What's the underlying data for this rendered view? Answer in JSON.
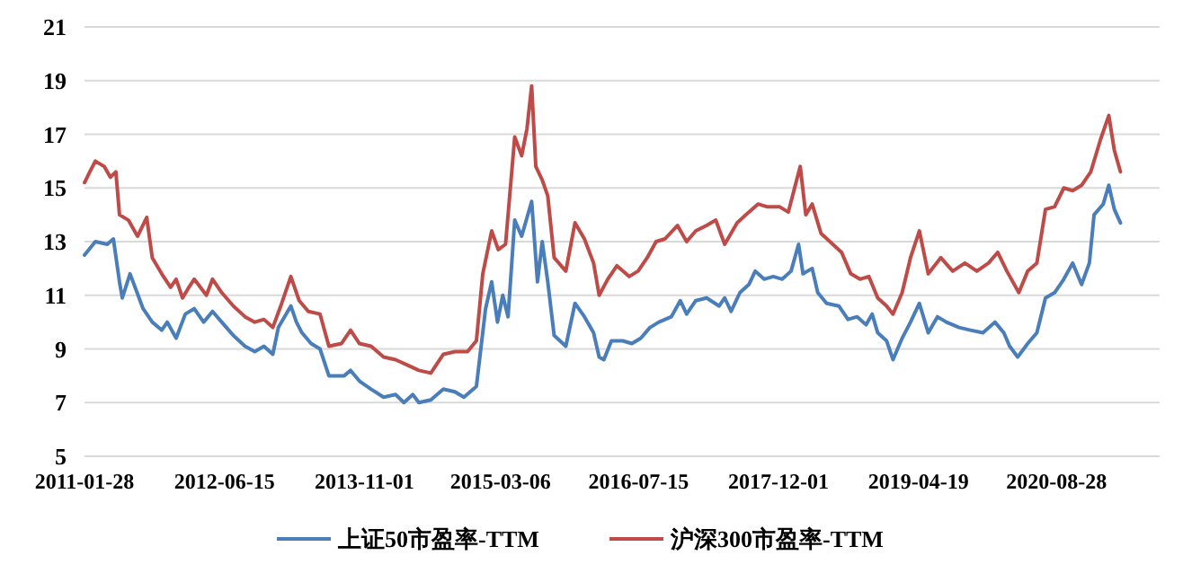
{
  "chart_data": {
    "type": "line",
    "xlim": [
      "2011-01-28",
      "2021-09-03"
    ],
    "xticks": [
      {
        "value": "2011-01-28",
        "label": "2011-01-28"
      },
      {
        "value": "2012-06-15",
        "label": "2012-06-15"
      },
      {
        "value": "2013-11-01",
        "label": "2013-11-01"
      },
      {
        "value": "2015-03-06",
        "label": "2015-03-06"
      },
      {
        "value": "2016-07-15",
        "label": "2016-07-15"
      },
      {
        "value": "2017-12-01",
        "label": "2017-12-01"
      },
      {
        "value": "2019-04-19",
        "label": "2019-04-19"
      },
      {
        "value": "2020-08-28",
        "label": "2020-08-28"
      }
    ],
    "ylim": [
      5,
      21
    ],
    "yticks": [
      5,
      7,
      9,
      11,
      13,
      15,
      17,
      19,
      21
    ],
    "grid": "y",
    "legend": "bottom",
    "marker": "none",
    "line_style": "solid",
    "series": [
      {
        "name": "上证50市盈率-TTM",
        "color": "#4a7ebb",
        "x": [
          "2011-01-28",
          "2011-03-08",
          "2011-04-20",
          "2011-05-12",
          "2011-06-03",
          "2011-06-13",
          "2011-07-11",
          "2011-08-27",
          "2011-09-29",
          "2011-11-02",
          "2011-11-22",
          "2011-12-24",
          "2012-01-26",
          "2012-02-27",
          "2012-04-01",
          "2012-05-03",
          "2012-06-05",
          "2012-07-17",
          "2012-08-28",
          "2012-10-02",
          "2012-11-04",
          "2012-12-06",
          "2012-12-26",
          "2013-02-09",
          "2013-03-01",
          "2013-03-21",
          "2013-04-23",
          "2013-05-25",
          "2013-06-26",
          "2013-08-20",
          "2013-09-12",
          "2013-10-14",
          "2013-11-25",
          "2014-01-09",
          "2014-02-21",
          "2014-03-23",
          "2014-04-24",
          "2014-05-16",
          "2014-06-28",
          "2014-08-12",
          "2014-09-23",
          "2014-10-25",
          "2014-12-09",
          "2015-01-11",
          "2015-02-02",
          "2015-02-23",
          "2015-03-14",
          "2015-04-02",
          "2015-04-26",
          "2015-05-21",
          "2015-06-26",
          "2015-07-17",
          "2015-08-03",
          "2015-08-23",
          "2015-09-15",
          "2015-10-27",
          "2015-11-29",
          "2016-01-02",
          "2016-02-04",
          "2016-02-24",
          "2016-03-12",
          "2016-04-08",
          "2016-05-19",
          "2016-06-21",
          "2016-07-23",
          "2016-08-25",
          "2016-09-26",
          "2016-11-10",
          "2016-12-12",
          "2017-01-04",
          "2017-02-06",
          "2017-03-17",
          "2017-05-01",
          "2017-05-21",
          "2017-06-13",
          "2017-07-15",
          "2017-08-16",
          "2017-09-08",
          "2017-10-10",
          "2017-11-12",
          "2017-12-14",
          "2018-01-15",
          "2018-02-11",
          "2018-02-27",
          "2018-04-01",
          "2018-04-21",
          "2018-05-23",
          "2018-07-06",
          "2018-08-08",
          "2018-09-10",
          "2018-10-12",
          "2018-11-03",
          "2018-11-23",
          "2018-12-25",
          "2019-01-17",
          "2019-02-19",
          "2019-03-21",
          "2019-04-22",
          "2019-05-24",
          "2019-06-26",
          "2019-07-28",
          "2019-09-12",
          "2019-10-23",
          "2019-12-07",
          "2020-01-19",
          "2020-02-20",
          "2020-03-12",
          "2020-04-10",
          "2020-05-16",
          "2020-06-18",
          "2020-07-19",
          "2020-08-21",
          "2020-09-23",
          "2020-10-25",
          "2020-11-26",
          "2020-12-24",
          "2021-01-10",
          "2021-02-12",
          "2021-03-04",
          "2021-03-24",
          "2021-04-15"
        ],
        "values": [
          12.5,
          13.0,
          12.9,
          13.1,
          11.5,
          10.9,
          11.8,
          10.5,
          10.0,
          9.7,
          10.0,
          9.4,
          10.3,
          10.5,
          10.0,
          10.4,
          10.0,
          9.5,
          9.1,
          8.9,
          9.1,
          8.8,
          9.8,
          10.6,
          10.0,
          9.6,
          9.2,
          9.0,
          8.0,
          8.0,
          8.2,
          7.8,
          7.5,
          7.2,
          7.3,
          7.0,
          7.3,
          7.0,
          7.1,
          7.5,
          7.4,
          7.2,
          7.6,
          10.5,
          11.5,
          10.0,
          11.0,
          10.2,
          13.8,
          13.2,
          14.5,
          11.5,
          13.0,
          11.5,
          9.5,
          9.1,
          10.7,
          10.2,
          9.6,
          8.7,
          8.6,
          9.3,
          9.3,
          9.2,
          9.4,
          9.8,
          10.0,
          10.2,
          10.8,
          10.3,
          10.8,
          10.9,
          10.6,
          10.9,
          10.4,
          11.1,
          11.4,
          11.9,
          11.6,
          11.7,
          11.6,
          11.9,
          12.9,
          11.8,
          12.0,
          11.1,
          10.7,
          10.6,
          10.1,
          10.2,
          9.9,
          10.3,
          9.6,
          9.3,
          8.6,
          9.4,
          10.0,
          10.7,
          9.6,
          10.2,
          10.0,
          9.8,
          9.7,
          9.6,
          10.0,
          9.6,
          9.1,
          8.7,
          9.2,
          9.6,
          10.9,
          11.1,
          11.6,
          12.2,
          11.4,
          12.2,
          14.0,
          14.4,
          15.1,
          14.2,
          13.7
        ]
      },
      {
        "name": "沪深300市盈率-TTM",
        "color": "#be4b48",
        "x": [
          "2011-01-28",
          "2011-02-16",
          "2011-03-08",
          "2011-04-09",
          "2011-05-01",
          "2011-05-21",
          "2011-06-03",
          "2011-07-05",
          "2011-08-07",
          "2011-09-09",
          "2011-09-29",
          "2011-11-02",
          "2011-12-04",
          "2011-12-24",
          "2012-01-16",
          "2012-02-08",
          "2012-02-27",
          "2012-04-11",
          "2012-05-03",
          "2012-06-05",
          "2012-07-17",
          "2012-08-28",
          "2012-10-02",
          "2012-11-04",
          "2012-12-06",
          "2013-01-07",
          "2013-02-09",
          "2013-03-11",
          "2013-04-13",
          "2013-05-25",
          "2013-06-26",
          "2013-08-10",
          "2013-09-12",
          "2013-10-14",
          "2013-11-25",
          "2014-01-09",
          "2014-02-21",
          "2014-04-04",
          "2014-05-16",
          "2014-06-28",
          "2014-08-12",
          "2014-09-23",
          "2014-11-07",
          "2014-12-09",
          "2015-01-01",
          "2015-02-02",
          "2015-02-26",
          "2015-03-24",
          "2015-04-26",
          "2015-05-21",
          "2015-06-09",
          "2015-06-26",
          "2015-07-11",
          "2015-08-03",
          "2015-08-23",
          "2015-09-15",
          "2015-10-27",
          "2015-11-29",
          "2016-01-02",
          "2016-02-04",
          "2016-02-24",
          "2016-03-26",
          "2016-04-28",
          "2016-06-11",
          "2016-07-13",
          "2016-08-15",
          "2016-09-16",
          "2016-10-18",
          "2016-12-02",
          "2017-01-04",
          "2017-02-06",
          "2017-03-17",
          "2017-04-19",
          "2017-05-21",
          "2017-07-05",
          "2017-08-16",
          "2017-09-18",
          "2017-10-20",
          "2017-12-04",
          "2018-01-05",
          "2018-02-17",
          "2018-03-09",
          "2018-04-01",
          "2018-05-03",
          "2018-06-04",
          "2018-07-16",
          "2018-08-18",
          "2018-09-20",
          "2018-10-22",
          "2018-11-23",
          "2018-12-25",
          "2019-01-17",
          "2019-02-19",
          "2019-03-21",
          "2019-04-22",
          "2019-05-24",
          "2019-07-08",
          "2019-08-20",
          "2019-10-03",
          "2019-11-15",
          "2019-12-27",
          "2020-01-29",
          "2020-03-02",
          "2020-04-14",
          "2020-05-16",
          "2020-06-18",
          "2020-07-19",
          "2020-08-21",
          "2020-09-23",
          "2020-10-25",
          "2020-11-26",
          "2020-12-29",
          "2021-02-02",
          "2021-03-04",
          "2021-03-24",
          "2021-04-15"
        ],
        "values": [
          15.2,
          15.6,
          16.0,
          15.8,
          15.4,
          15.6,
          14.0,
          13.8,
          13.2,
          13.9,
          12.4,
          11.8,
          11.3,
          11.6,
          10.9,
          11.3,
          11.6,
          11.0,
          11.6,
          11.1,
          10.6,
          10.2,
          10.0,
          10.1,
          9.8,
          10.7,
          11.7,
          10.8,
          10.4,
          10.3,
          9.1,
          9.2,
          9.7,
          9.2,
          9.1,
          8.7,
          8.6,
          8.4,
          8.2,
          8.1,
          8.8,
          8.9,
          8.9,
          9.3,
          11.8,
          13.4,
          12.7,
          12.9,
          16.9,
          16.2,
          17.2,
          18.8,
          15.8,
          15.3,
          14.7,
          12.4,
          11.9,
          13.7,
          13.1,
          12.2,
          11.0,
          11.6,
          12.1,
          11.7,
          11.9,
          12.4,
          13.0,
          13.1,
          13.6,
          13.0,
          13.4,
          13.6,
          13.8,
          12.9,
          13.7,
          14.1,
          14.4,
          14.3,
          14.3,
          14.1,
          15.8,
          14.0,
          14.4,
          13.3,
          13.0,
          12.6,
          11.8,
          11.6,
          11.7,
          10.9,
          10.6,
          10.3,
          11.1,
          12.4,
          13.4,
          11.8,
          12.4,
          11.9,
          12.2,
          11.9,
          12.2,
          12.6,
          11.9,
          11.1,
          11.9,
          12.2,
          14.2,
          14.3,
          15.0,
          14.9,
          15.1,
          15.6,
          16.8,
          17.7,
          16.4,
          15.6
        ]
      }
    ]
  }
}
